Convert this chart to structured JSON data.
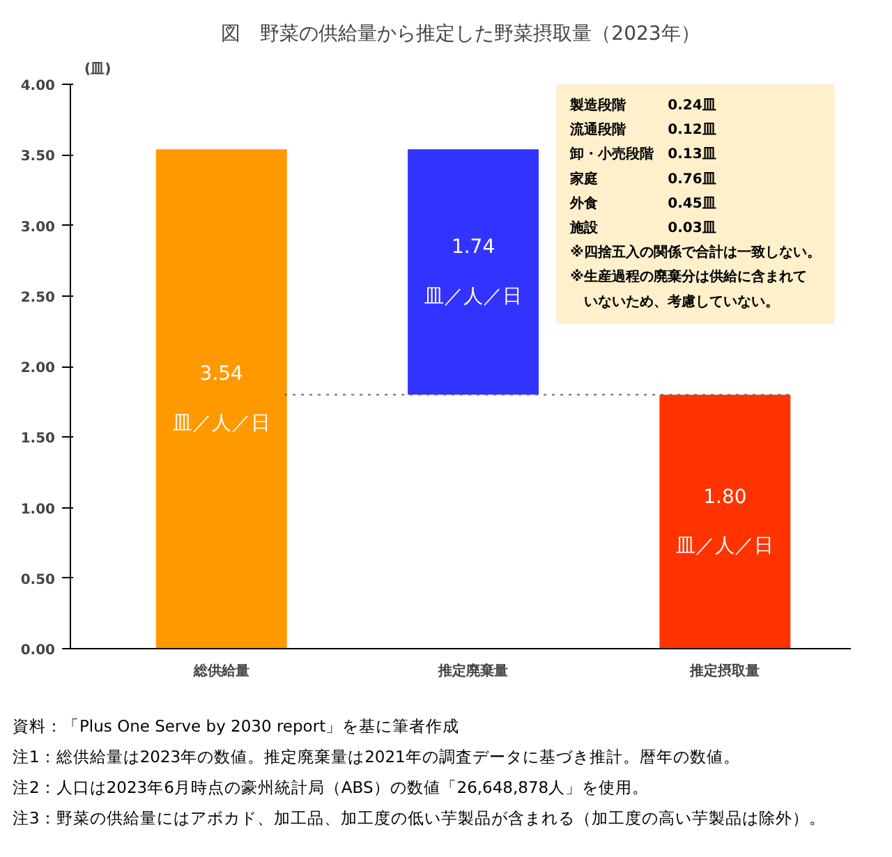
{
  "chart_data": {
    "type": "bar",
    "title": "図　野菜の供給量から推定した野菜摂取量（2023年）",
    "ylabel": "(皿)",
    "categories": [
      "総供給量",
      "推定廃棄量",
      "推定摂取量"
    ],
    "values": [
      3.54,
      1.74,
      1.8
    ],
    "base": [
      0,
      1.8,
      0
    ],
    "colors": [
      "#ff9900",
      "#3333ff",
      "#ff3300"
    ],
    "value_labels": [
      "3.54\n皿／人／日",
      "1.74\n皿／人／日",
      "1.80\n皿／人／日"
    ],
    "ylim": [
      0,
      4
    ],
    "yticks": [
      {
        "value": 0,
        "label": "0.00"
      },
      {
        "value": 0.5,
        "label": "0.50"
      },
      {
        "value": 1,
        "label": "1.00"
      },
      {
        "value": 1.5,
        "label": "1.50"
      },
      {
        "value": 2,
        "label": "2.00"
      },
      {
        "value": 2.5,
        "label": "2.50"
      },
      {
        "value": 3,
        "label": "3.00"
      },
      {
        "value": 3.5,
        "label": "3.50"
      },
      {
        "value": 4,
        "label": "4.00"
      }
    ],
    "ref_lines": [
      {
        "axis": "y",
        "value": 1.8,
        "color": "#666666",
        "line_style": "dotted"
      }
    ],
    "grid": false,
    "annotations": [
      "製造段階　　　0.24皿",
      "流通段階　　　0.12皿",
      "卸・小売段階　0.13皿",
      "家庭　　　　　0.76皿",
      "外食　　　　　0.45皿",
      "施設　　　　　0.03皿",
      "※四捨五入の関係で合計は一致しない。",
      "※生産過程の廃棄分は供給に含まれて",
      "　いないため、考慮していない。",
      "資料：「Plus One Serve by 2030 report」を基に筆者作成",
      "注1：総供給量は2023年の数値。推定廃棄量は2021年の調査データに基づき推計。暦年の数値。",
      "注2：人口は2023年6月時点の豪州統計局（ABS）の数値「26,648,878人」を使用。",
      "注3：野菜の供給量にはアボカド、加工品、加工度の低い芋製品が含まれる（加工度の高い芋製品は除外）。"
    ]
  }
}
